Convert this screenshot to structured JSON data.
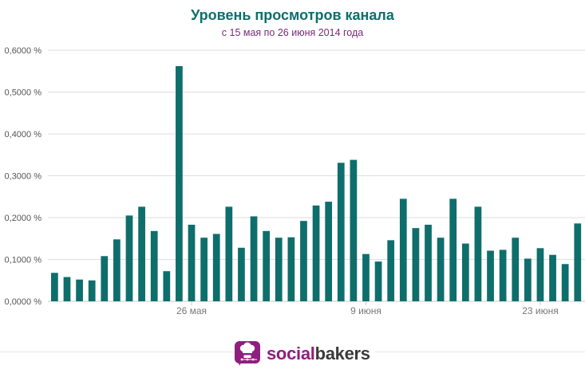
{
  "chart_data": {
    "type": "bar",
    "title": "Уровень просмотров канала",
    "subtitle": "с 15 мая по 26 июня 2014 года",
    "xlabel": "",
    "ylabel": "",
    "ylim": [
      0,
      0.6
    ],
    "yticks": [
      0,
      0.1,
      0.2,
      0.3,
      0.4,
      0.5,
      0.6
    ],
    "ytick_labels": [
      "0,0000 %",
      "0,1000 %",
      "0,2000 %",
      "0,3000 %",
      "0,4000 %",
      "0,5000 %",
      "0,6000 %"
    ],
    "xtick_labels": [
      {
        "label": "26 мая",
        "index": 11
      },
      {
        "label": "9 июня",
        "index": 25
      },
      {
        "label": "23 июня",
        "index": 39
      }
    ],
    "grid": true,
    "bar_color": "#0e6e6c",
    "values": [
      0.068,
      0.058,
      0.052,
      0.05,
      0.108,
      0.148,
      0.205,
      0.226,
      0.168,
      0.072,
      0.562,
      0.183,
      0.152,
      0.161,
      0.226,
      0.128,
      0.203,
      0.168,
      0.152,
      0.153,
      0.192,
      0.229,
      0.238,
      0.331,
      0.338,
      0.113,
      0.095,
      0.146,
      0.245,
      0.175,
      0.183,
      0.152,
      0.245,
      0.138,
      0.226,
      0.121,
      0.123,
      0.152,
      0.102,
      0.127,
      0.111,
      0.089,
      0.186
    ]
  },
  "brand": {
    "part1": "social",
    "part2": "bakers",
    "primary_color": "#8e1f7e"
  }
}
